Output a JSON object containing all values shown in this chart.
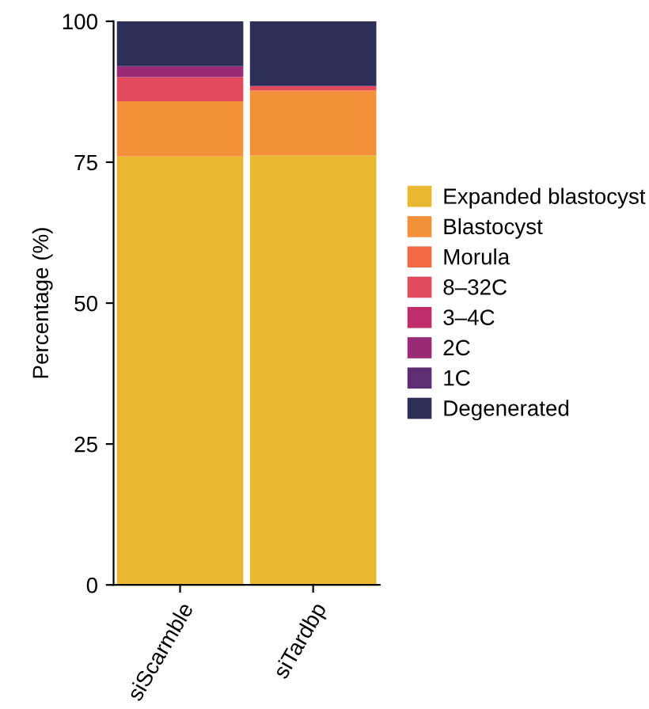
{
  "chart_data": {
    "type": "bar",
    "stacked": true,
    "ylabel": "Percentage (%)",
    "categories": [
      "siScarmble",
      "siTardbp"
    ],
    "series": [
      {
        "name": "Expanded blastocyst",
        "color": "#e8b830",
        "values": [
          76,
          76.2
        ]
      },
      {
        "name": "Blastocyst",
        "color": "#f5903a",
        "values": [
          9.8,
          11.5
        ]
      },
      {
        "name": "Morula",
        "color": "#f26b44",
        "values": [
          0,
          0
        ]
      },
      {
        "name": "8–32C",
        "color": "#e24a5e",
        "values": [
          4.3,
          0.8
        ]
      },
      {
        "name": "3–4C",
        "color": "#c02d6b",
        "values": [
          0,
          0
        ]
      },
      {
        "name": "2C",
        "color": "#992a75",
        "values": [
          1.9,
          0
        ]
      },
      {
        "name": "1C",
        "color": "#5f2d73",
        "values": [
          0,
          0
        ]
      },
      {
        "name": "Degenerated",
        "color": "#2e2f58",
        "values": [
          8,
          11.5
        ]
      }
    ],
    "ylim": [
      0,
      100
    ],
    "yticks": [
      0,
      25,
      50,
      75,
      100
    ],
    "grid": false,
    "legend": "right"
  }
}
